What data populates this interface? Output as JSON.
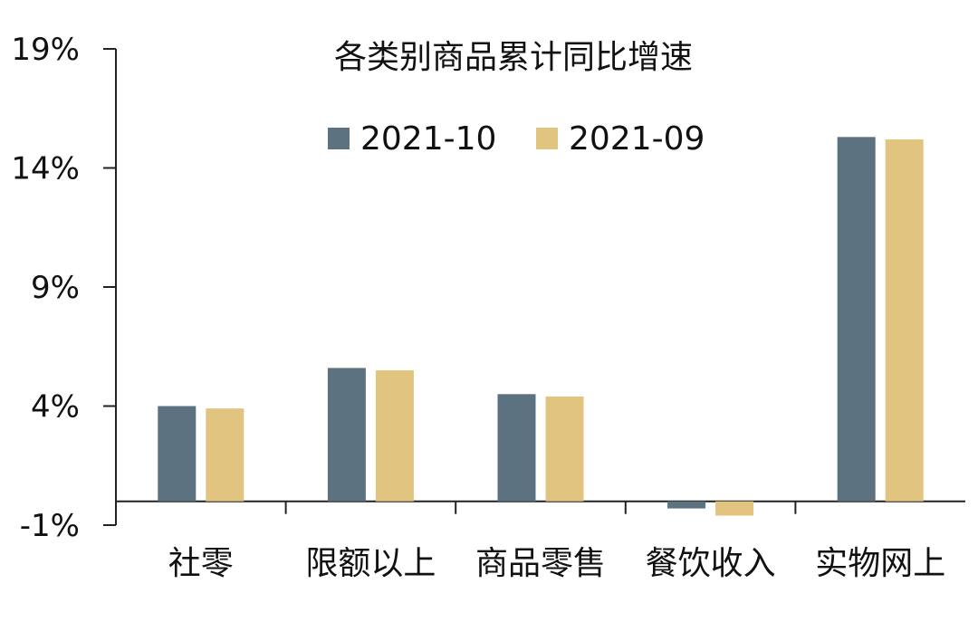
{
  "chart_data": {
    "type": "bar",
    "title": "各类别商品累计同比增速",
    "categories": [
      "社零",
      "限额以上",
      "商品零售",
      "餐饮收入",
      "实物网上"
    ],
    "series": [
      {
        "name": "2021-10",
        "color": "#5d7280",
        "values": [
          4.0,
          5.6,
          4.5,
          -0.3,
          15.3
        ]
      },
      {
        "name": "2021-09",
        "color": "#e0c47f",
        "values": [
          3.9,
          5.5,
          4.4,
          -0.6,
          15.2
        ]
      }
    ],
    "ylim": [
      -1,
      19
    ],
    "yticks": [
      -1,
      4,
      9,
      14,
      19
    ],
    "ytick_labels": [
      "-1%",
      "4%",
      "9%",
      "14%",
      "19%"
    ],
    "xlabel": "",
    "ylabel": "",
    "legend_position": "top-center",
    "grid": false
  }
}
